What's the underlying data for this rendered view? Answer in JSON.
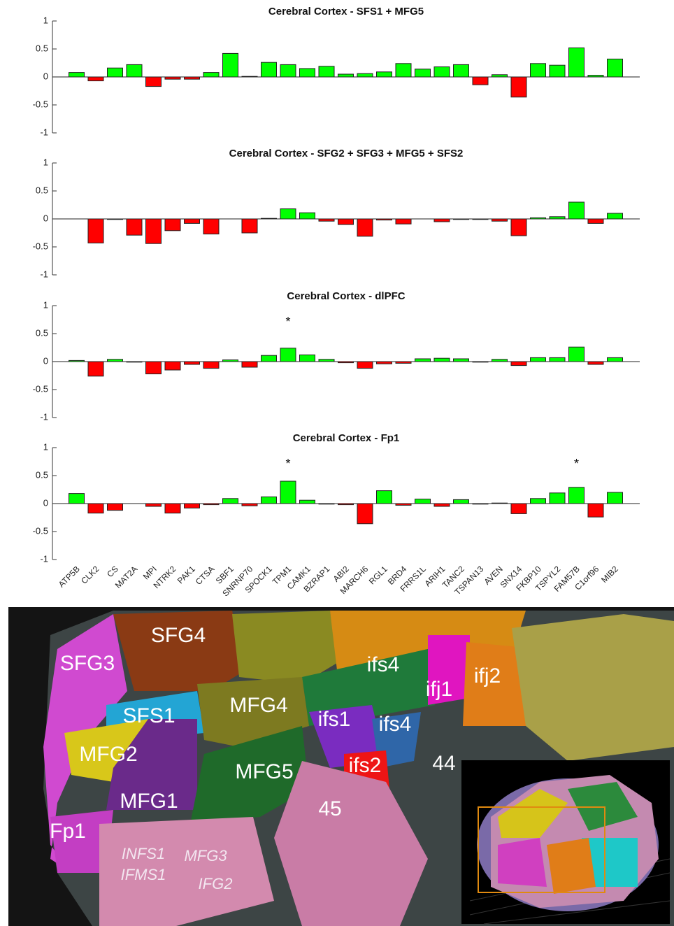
{
  "chart_data": [
    {
      "type": "bar",
      "title": "Cerebral Cortex - SFS1 + MFG5",
      "values": [
        0.08,
        -0.07,
        0.16,
        0.22,
        -0.17,
        -0.04,
        -0.04,
        0.08,
        0.42,
        0.01,
        0.26,
        0.22,
        0.15,
        0.19,
        0.05,
        0.06,
        0.09,
        0.24,
        0.14,
        0.18,
        0.22,
        -0.14,
        0.04,
        -0.36,
        0.24,
        0.21,
        0.52,
        0.03,
        0.32
      ],
      "positive_color": "#00ff00",
      "negative_color": "#ff0000",
      "ylim": [
        -1,
        1
      ],
      "yticks": [
        -1,
        -0.5,
        0,
        0.5,
        1
      ]
    },
    {
      "type": "bar",
      "title": "Cerebral Cortex - SFG2 + SFG3 + MFG5 + SFS2",
      "values": [
        0,
        -0.43,
        -0.01,
        -0.29,
        -0.44,
        -0.21,
        -0.08,
        -0.27,
        0,
        -0.25,
        0.01,
        0.18,
        0.11,
        -0.04,
        -0.1,
        -0.31,
        -0.02,
        -0.09,
        0,
        -0.05,
        -0.01,
        -0.01,
        -0.04,
        -0.3,
        0.02,
        0.04,
        0.3,
        -0.08,
        0.1
      ],
      "positive_color": "#00ff00",
      "negative_color": "#ff0000",
      "ylim": [
        -1,
        1
      ],
      "yticks": [
        -1,
        -0.5,
        0,
        0.5,
        1
      ]
    },
    {
      "type": "bar",
      "title": "Cerebral Cortex - dlPFC",
      "values": [
        0.02,
        -0.26,
        0.04,
        -0.01,
        -0.22,
        -0.15,
        -0.05,
        -0.12,
        0.03,
        -0.1,
        0.11,
        0.24,
        0.12,
        0.04,
        -0.02,
        -0.12,
        -0.04,
        -0.03,
        0.05,
        0.06,
        0.05,
        -0.01,
        0.04,
        -0.07,
        0.07,
        0.07,
        0.26,
        -0.05,
        0.07
      ],
      "positive_color": "#00ff00",
      "negative_color": "#ff0000",
      "ylim": [
        -1,
        1
      ],
      "yticks": [
        -1,
        -0.5,
        0,
        0.5,
        1
      ],
      "annotations": [
        {
          "category": "TPM1",
          "text": "*"
        }
      ]
    },
    {
      "type": "bar",
      "title": "Cerebral Cortex - Fp1",
      "categories": [
        "ATP5B",
        "CLK2",
        "CS",
        "MAT2A",
        "MPI",
        "NTRK2",
        "PAK1",
        "CTSA",
        "SBF1",
        "SNRNP70",
        "SPOCK1",
        "TPM1",
        "CAMK1",
        "BZRAP1",
        "ABI2",
        "MARCH6",
        "RGL1",
        "BRD4",
        "FRRS1L",
        "ARIH1",
        "TANC2",
        "TSPAN13",
        "AVEN",
        "SNX14",
        "FKBP10",
        "TSPYL2",
        "FAM57B",
        "C1orf96",
        "MIB2"
      ],
      "values": [
        0.18,
        -0.17,
        -0.12,
        0,
        -0.05,
        -0.17,
        -0.08,
        -0.02,
        0.09,
        -0.04,
        0.12,
        0.4,
        0.06,
        -0.01,
        -0.02,
        -0.36,
        0.23,
        -0.03,
        0.08,
        -0.05,
        0.07,
        -0.01,
        0.01,
        -0.18,
        0.09,
        0.19,
        0.29,
        -0.24,
        0.2
      ],
      "positive_color": "#00ff00",
      "negative_color": "#ff0000",
      "ylim": [
        -1,
        1
      ],
      "yticks": [
        -1,
        -0.5,
        0,
        0.5,
        1
      ],
      "annotations": [
        {
          "category": "TPM1",
          "text": "*"
        },
        {
          "category": "FAM57B",
          "text": "*"
        }
      ]
    }
  ],
  "brain_map": {
    "labels": [
      "SFG4",
      "SFG3",
      "ifs4",
      "ifj1",
      "ifj2",
      "SFS1",
      "MFG4",
      "ifs1",
      "ifs4",
      "MFG2",
      "44",
      "ifs2",
      "MFG5",
      "MFG1",
      "45",
      "Fp1",
      "INFS1",
      "MFG3",
      "IFMS1",
      "IFG2"
    ]
  }
}
